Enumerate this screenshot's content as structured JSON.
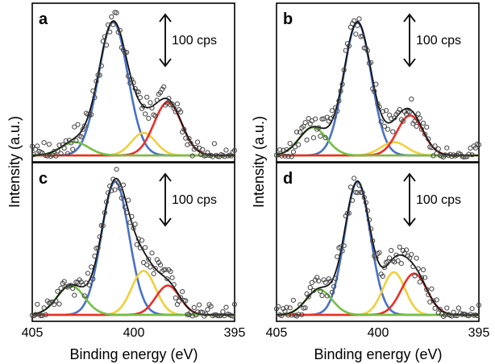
{
  "figure": {
    "ylabel": "Intensity (a.u.)",
    "xlabel": "Binding energy (eV)",
    "x_ticks": [
      "405",
      "400",
      "395"
    ],
    "scale_bar_label": "100 cps"
  },
  "colors": {
    "blue": "#4a72c4",
    "red": "#e8302a",
    "yellow": "#f2cf3c",
    "green": "#74c044",
    "baseline": "#f08080",
    "envelope": "#111111",
    "points": "#555555"
  },
  "chart_data": [
    {
      "type": "line",
      "panel": "a",
      "xlim": [
        405,
        395
      ],
      "series": [
        {
          "peak_eV": 401,
          "height": 1.0,
          "fwhm": 1.7
        },
        {
          "peak_eV": 399.5,
          "height": 0.17,
          "fwhm": 1.4
        },
        {
          "peak_eV": 398.3,
          "height": 0.4,
          "fwhm": 1.6
        },
        {
          "peak_eV": 402.9,
          "height": 0.1,
          "fwhm": 1.6
        }
      ]
    },
    {
      "type": "line",
      "panel": "b",
      "xlim": [
        405,
        395
      ],
      "series": [
        {
          "peak_eV": 401,
          "height": 1.0,
          "fwhm": 1.6
        },
        {
          "peak_eV": 399.2,
          "height": 0.1,
          "fwhm": 1.5
        },
        {
          "peak_eV": 398.4,
          "height": 0.3,
          "fwhm": 1.5
        },
        {
          "peak_eV": 403.2,
          "height": 0.21,
          "fwhm": 1.6
        }
      ]
    },
    {
      "type": "line",
      "panel": "c",
      "xlim": [
        405,
        395
      ],
      "series": [
        {
          "peak_eV": 400.9,
          "height": 1.0,
          "fwhm": 1.6
        },
        {
          "peak_eV": 399.5,
          "height": 0.33,
          "fwhm": 1.4
        },
        {
          "peak_eV": 398.3,
          "height": 0.22,
          "fwhm": 1.4
        },
        {
          "peak_eV": 403.1,
          "height": 0.22,
          "fwhm": 1.6
        }
      ]
    },
    {
      "type": "line",
      "panel": "d",
      "xlim": [
        405,
        395
      ],
      "series": [
        {
          "peak_eV": 401,
          "height": 1.0,
          "fwhm": 1.5
        },
        {
          "peak_eV": 399.2,
          "height": 0.32,
          "fwhm": 1.3
        },
        {
          "peak_eV": 398.2,
          "height": 0.31,
          "fwhm": 1.5
        },
        {
          "peak_eV": 402.9,
          "height": 0.19,
          "fwhm": 1.5
        }
      ]
    }
  ]
}
